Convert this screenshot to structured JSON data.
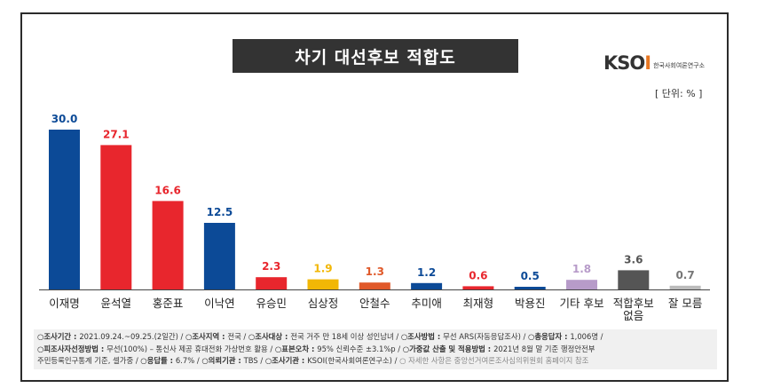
{
  "chart_data": {
    "type": "bar",
    "title": "차기 대선후보 적합도",
    "unit_label": "[ 단위: % ]",
    "categories": [
      "이재명",
      "윤석열",
      "홍준표",
      "이낙연",
      "유승민",
      "심상정",
      "안철수",
      "추미애",
      "최재형",
      "박용진",
      "기타 후보",
      "적합후보\n없음",
      "잘 모름"
    ],
    "values": [
      30.0,
      27.1,
      16.6,
      12.5,
      2.3,
      1.9,
      1.3,
      1.2,
      0.6,
      0.5,
      1.8,
      3.6,
      0.7
    ],
    "labels": [
      "30.0",
      "27.1",
      "16.6",
      "12.5",
      "2.3",
      "1.9",
      "1.3",
      "1.2",
      "0.6",
      "0.5",
      "1.8",
      "3.6",
      "0.7"
    ],
    "colors": [
      "#0c4a97",
      "#e8262d",
      "#e8262d",
      "#0c4a97",
      "#e8262d",
      "#f2b705",
      "#e0592a",
      "#0c4a97",
      "#e8262d",
      "#0c4a97",
      "#b79bc9",
      "#555555",
      "#bbbbbb"
    ],
    "ylim": [
      0,
      30
    ],
    "grid": false
  },
  "logo": {
    "mark_k": "K",
    "mark_s": "S",
    "mark_o": "O",
    "mark_i": "I",
    "sub": "한국사회여론연구소"
  },
  "footer": {
    "line1": [
      {
        "k": "조사기간 : ",
        "v": "2021.09.24.~09.25.(2일간)  /  "
      },
      {
        "k": "조사지역 : ",
        "v": "전국  /  "
      },
      {
        "k": "조사대상 : ",
        "v": "전국 거주 만 18세 이상 성인남녀  /  "
      },
      {
        "k": "조사방법 : ",
        "v": "무선 ARS(자동응답조사)  /  "
      },
      {
        "k": "총응답자 : ",
        "v": "1,006명  /"
      }
    ],
    "line2": [
      {
        "k": "피조사자선정방법 : ",
        "v": "무선(100%) – 통신사 제공 휴대전화 가상번호 활용  /  "
      },
      {
        "k": "표본오차 : ",
        "v": "95% 신뢰수준 ±3.1%p  /  "
      },
      {
        "k": "가중값 산출 및 적용방법 : ",
        "v": "2021년 8월 말 기준 행정안전부"
      }
    ],
    "line3_text": "주민등록인구통계 기준, 셀가중  /  ",
    "line3": [
      {
        "k": "응답률 : ",
        "v": "6.7%  /  "
      },
      {
        "k": "의뢰기관 : ",
        "v": "TBS  /  "
      },
      {
        "k": "조사기관 : ",
        "v": "KSOI(한국사회여론연구소)  /  "
      }
    ],
    "line3_muted": "자세한 사항은 중앙선거여론조사심의위원회 홈페이지 참조"
  }
}
